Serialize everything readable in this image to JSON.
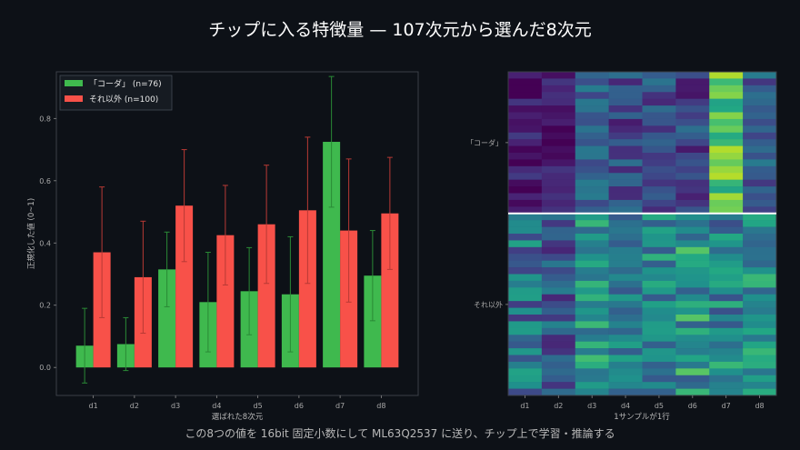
{
  "title": "チップに入る特徴量 — 107次元から選んだ8次元",
  "caption": "この8つの値を 16bit 固定小数にして ML63Q2537 に送り、チップ上で学習・推論する",
  "colors": {
    "background": "#0d1117",
    "koda": "#3fb94e",
    "other": "#f85149",
    "errorbar_koda": "#2a8a36",
    "errorbar_other": "#b83a35",
    "separator": "#ffffff"
  },
  "chart_data": [
    {
      "type": "bar",
      "categories": [
        "d1",
        "d2",
        "d3",
        "d4",
        "d5",
        "d6",
        "d7",
        "d8"
      ],
      "xlabel": "選ばれた8次元",
      "ylabel": "正規化した値 (0~1)",
      "ylim": [
        -0.09,
        0.95
      ],
      "yticks": [
        0.0,
        0.2,
        0.4,
        0.6,
        0.8
      ],
      "legend_position": "top-left",
      "series": [
        {
          "name": "「コーダ」 (n=76)",
          "color": "#3fb94e",
          "values": [
            0.07,
            0.075,
            0.315,
            0.21,
            0.245,
            0.235,
            0.725,
            0.295
          ],
          "error": [
            0.12,
            0.085,
            0.12,
            0.16,
            0.14,
            0.185,
            0.21,
            0.145
          ]
        },
        {
          "name": "それ以外 (n=100)",
          "color": "#f85149",
          "values": [
            0.37,
            0.29,
            0.52,
            0.425,
            0.46,
            0.505,
            0.44,
            0.495
          ],
          "error": [
            0.21,
            0.18,
            0.18,
            0.16,
            0.19,
            0.235,
            0.23,
            0.18
          ]
        }
      ]
    },
    {
      "type": "heatmap",
      "columns": [
        "d1",
        "d2",
        "d3",
        "d4",
        "d5",
        "d6",
        "d7",
        "d8"
      ],
      "xlabel": "1サンプルが1行",
      "row_groups": [
        {
          "label": "「コーダ」",
          "rows": 76
        },
        {
          "label": "それ以外",
          "rows": 100
        }
      ],
      "colormap": "viridis"
    }
  ]
}
